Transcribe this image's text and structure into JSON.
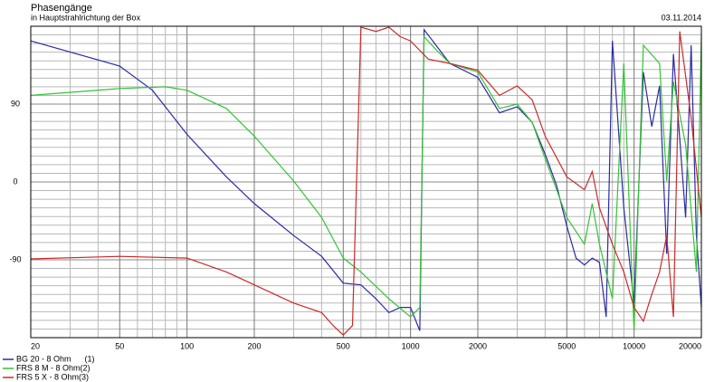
{
  "chart_data": {
    "type": "line",
    "title": "Phasengänge",
    "subtitle": "in Hauptstrahlrichtung der Box",
    "date": "03.11.2014",
    "log_x": true,
    "grid": true,
    "legend": "bottom-left",
    "xlim": [
      20,
      20000
    ],
    "xticks": [
      20,
      50,
      100,
      200,
      500,
      1000,
      2000,
      5000,
      10000,
      20000
    ],
    "xminor": [
      30,
      40,
      60,
      70,
      80,
      90,
      300,
      400,
      600,
      700,
      800,
      900,
      3000,
      4000,
      6000,
      7000,
      8000,
      9000
    ],
    "ylim": [
      -180,
      180
    ],
    "yticks": [
      -90,
      0,
      90
    ],
    "yminor": [
      -180,
      -170,
      -160,
      -150,
      -140,
      -130,
      -120,
      -110,
      -100,
      -80,
      -70,
      -60,
      -50,
      -40,
      -30,
      -20,
      -10,
      10,
      20,
      30,
      40,
      50,
      60,
      70,
      80,
      100,
      110,
      120,
      130,
      140,
      150,
      160,
      170,
      180
    ],
    "series": [
      {
        "name": "BG 20 - 8 Ohm      (1)",
        "color": "#2b2ba3",
        "x": [
          20,
          50,
          70,
          100,
          150,
          200,
          300,
          400,
          500,
          600,
          700,
          800,
          900,
          1000,
          1100,
          1150,
          1300,
          1500,
          2000,
          2500,
          3000,
          3500,
          4000,
          4500,
          5000,
          5500,
          6000,
          6500,
          7000,
          7500,
          8000,
          9000,
          10000,
          11000,
          12000,
          13000,
          14000,
          15000,
          17000,
          18000,
          19000,
          20000
        ],
        "values": [
          163,
          134,
          106,
          55,
          6,
          -25,
          -62,
          -86,
          -117,
          -119,
          -135,
          -151,
          -145,
          -145,
          -172,
          176,
          158,
          137,
          121,
          80,
          87,
          69,
          32,
          -4,
          -51,
          -88,
          -96,
          -88,
          -93,
          -156,
          163,
          -30,
          -140,
          127,
          64,
          111,
          -83,
          148,
          -41,
          158,
          -62,
          -145
        ]
      },
      {
        "name": "FRS 8 M - 8 Ohm(2)",
        "color": "#33c433",
        "x": [
          20,
          50,
          80,
          100,
          150,
          200,
          300,
          400,
          500,
          600,
          800,
          1000,
          1100,
          1150,
          1300,
          1500,
          2000,
          2500,
          3000,
          3500,
          4000,
          5000,
          6000,
          6500,
          7000,
          8000,
          9000,
          10000,
          11000,
          13000,
          14000,
          15000,
          17000,
          19000,
          20000
        ],
        "values": [
          100,
          108,
          110,
          106,
          85,
          53,
          1,
          -41,
          -88,
          -104,
          -135,
          -156,
          -145,
          168,
          153,
          137,
          127,
          85,
          90,
          69,
          27,
          -41,
          -72,
          -25,
          -72,
          -135,
          137,
          -172,
          158,
          137,
          1,
          116,
          43,
          -104,
          168
        ]
      },
      {
        "name": "FRS 5 X - 8 Ohm(3)",
        "color": "#cc2a2a",
        "x": [
          20,
          50,
          100,
          150,
          200,
          300,
          400,
          450,
          500,
          550,
          600,
          700,
          800,
          900,
          1000,
          1200,
          1500,
          2000,
          2500,
          3000,
          3500,
          4000,
          5000,
          6000,
          6500,
          7000,
          8000,
          9000,
          10000,
          11000,
          12000,
          13000,
          14000,
          15000,
          16000,
          18000,
          20000
        ],
        "values": [
          -89,
          -86,
          -88,
          -104,
          -119,
          -140,
          -151,
          -166,
          -177,
          -166,
          179,
          174,
          179,
          168,
          163,
          142,
          137,
          129,
          100,
          111,
          95,
          53,
          6,
          -9,
          12,
          -30,
          -72,
          -104,
          -145,
          -161,
          -130,
          -104,
          -62,
          -156,
          174,
          74,
          -41
        ]
      }
    ]
  }
}
